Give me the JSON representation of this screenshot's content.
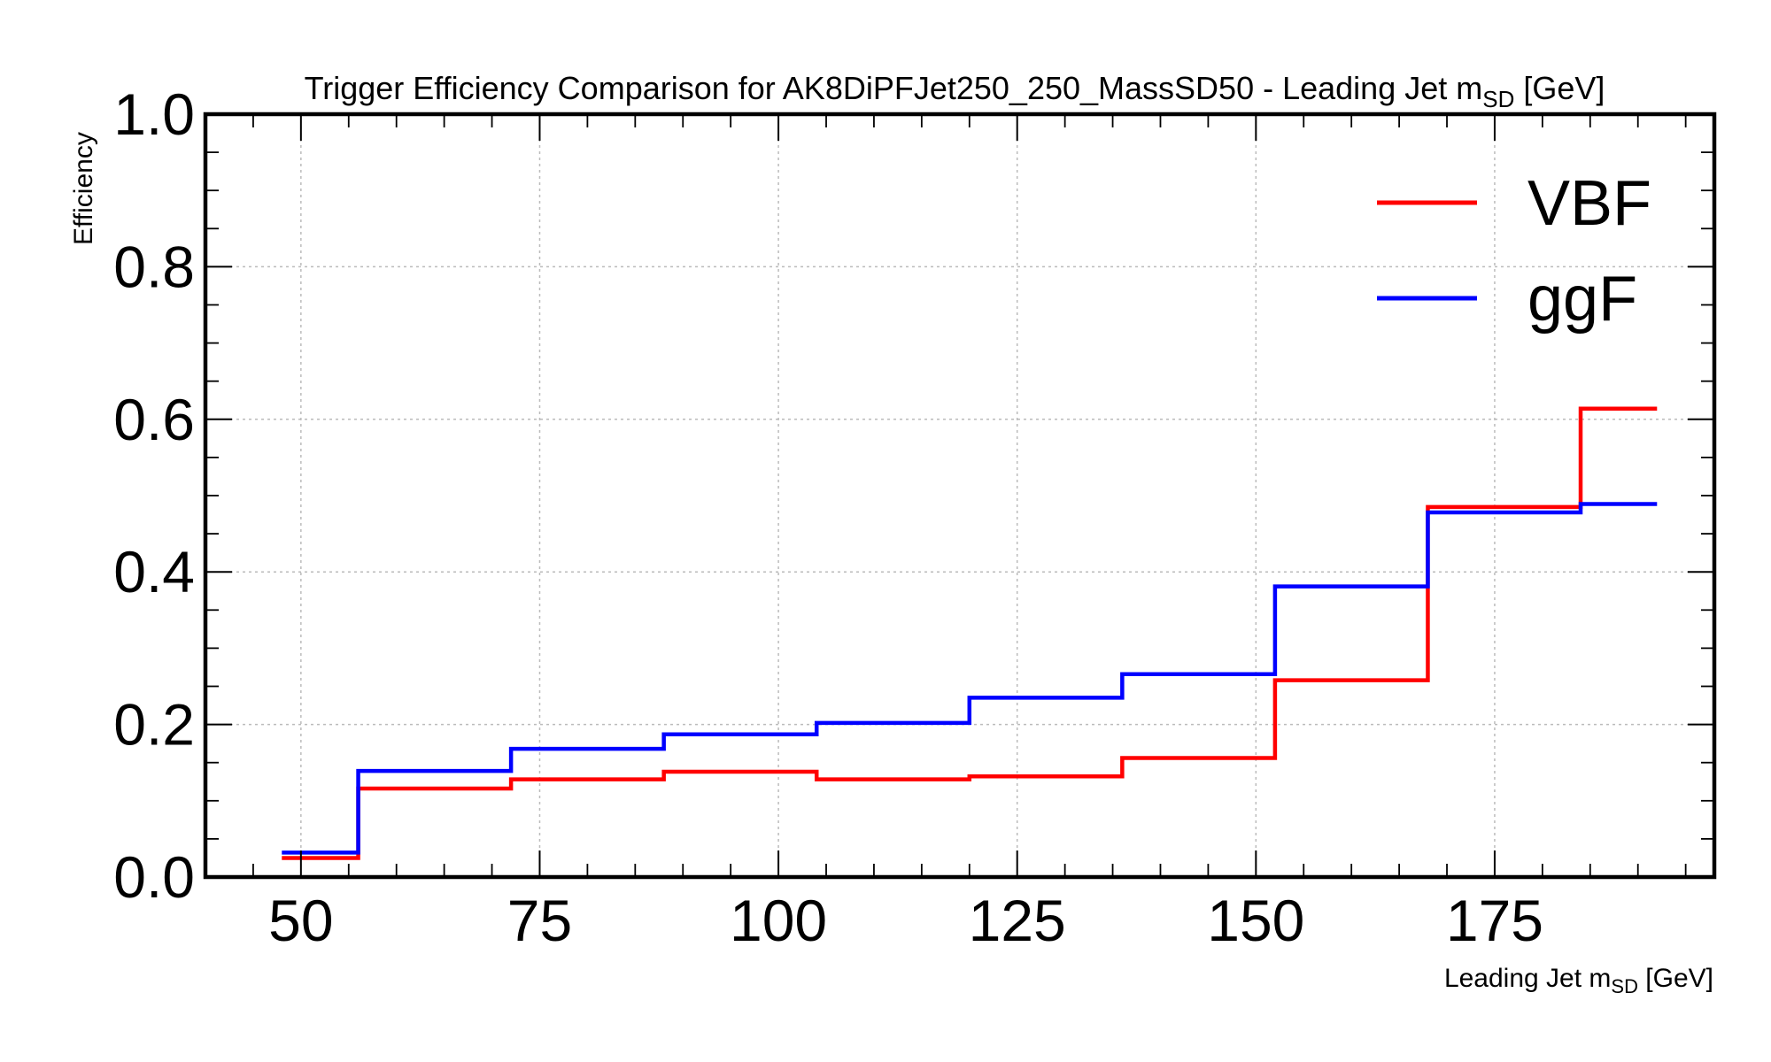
{
  "chart_data": {
    "type": "line",
    "title": "Trigger Efficiency Comparison for AK8DiPFJet250_250_MassSD50 - Leading Jet m",
    "title_subscript": "SD",
    "title_suffix": " [GeV]",
    "xlabel": "Leading Jet m",
    "xlabel_subscript": "SD",
    "xlabel_suffix": " [GeV]",
    "ylabel": "Efficiency",
    "xlim": [
      40,
      198
    ],
    "ylim": [
      0.0,
      1.0
    ],
    "x_ticks": [
      50,
      75,
      100,
      125,
      150,
      175
    ],
    "y_ticks": [
      0.0,
      0.2,
      0.4,
      0.6,
      0.8,
      1.0
    ],
    "y_tick_labels": [
      "0.0",
      "0.2",
      "0.4",
      "0.6",
      "0.8",
      "1.0"
    ],
    "grid": true,
    "legend_position": "top-right",
    "drawstyle": "steps",
    "bin_edges": [
      48,
      56,
      72,
      88,
      104,
      120,
      136,
      152,
      168,
      184,
      192
    ],
    "series": [
      {
        "name": "VBF",
        "color": "#ff0000",
        "values": [
          0.025,
          0.116,
          0.128,
          0.138,
          0.128,
          0.132,
          0.156,
          0.258,
          0.485,
          0.614
        ]
      },
      {
        "name": "ggF",
        "color": "#0000ff",
        "values": [
          0.032,
          0.139,
          0.168,
          0.187,
          0.202,
          0.235,
          0.266,
          0.381,
          0.478,
          0.489
        ]
      }
    ]
  }
}
